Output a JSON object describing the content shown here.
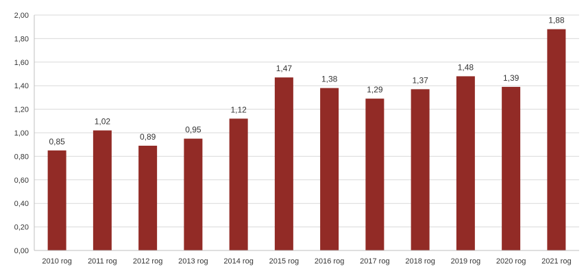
{
  "chart_data": {
    "type": "bar",
    "categories": [
      "2010 rog",
      "2011 rog",
      "2012 rog",
      "2013 rog",
      "2014 rog",
      "2015 rog",
      "2016 rog",
      "2017 rog",
      "2018 rog",
      "2019 rog",
      "2020 rog",
      "2021 rog"
    ],
    "values": [
      0.85,
      1.02,
      0.89,
      0.95,
      1.12,
      1.47,
      1.38,
      1.29,
      1.37,
      1.48,
      1.39,
      1.88
    ],
    "value_labels": [
      "0,85",
      "1,02",
      "0,89",
      "0,95",
      "1,12",
      "1,47",
      "1,38",
      "1,29",
      "1,37",
      "1,48",
      "1,39",
      "1,88"
    ],
    "y_ticks": [
      "0,00",
      "0,20",
      "0,40",
      "0,60",
      "0,80",
      "1,00",
      "1,20",
      "1,40",
      "1,60",
      "1,80",
      "2,00"
    ],
    "title": "",
    "xlabel": "",
    "ylabel": "",
    "ylim": [
      0,
      2.0
    ],
    "grid": true,
    "legend": "none",
    "bar_color": "#922b26"
  }
}
